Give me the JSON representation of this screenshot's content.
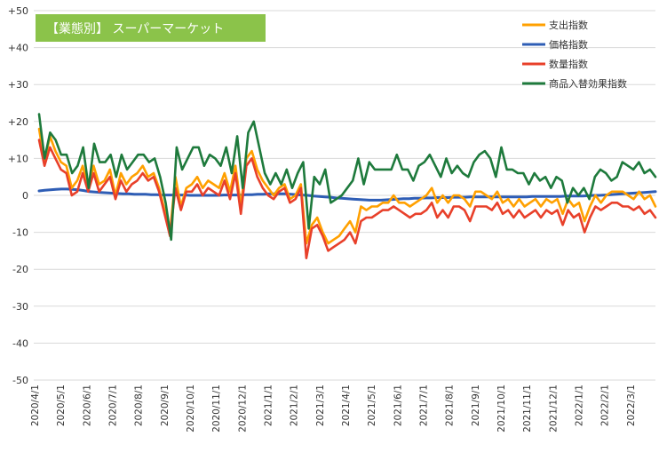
{
  "chart_data": {
    "type": "line",
    "title": "【業態別】 スーパーマーケット",
    "ylim": [
      -50,
      50
    ],
    "yticks": [
      {
        "value": 50,
        "label": "+50"
      },
      {
        "value": 40,
        "label": "+40"
      },
      {
        "value": 30,
        "label": "+30"
      },
      {
        "value": 20,
        "label": "+20"
      },
      {
        "value": 10,
        "label": "+10"
      },
      {
        "value": 0,
        "label": "0"
      },
      {
        "value": -10,
        "label": "-10"
      },
      {
        "value": -20,
        "label": "-20"
      },
      {
        "value": -30,
        "label": "-30"
      },
      {
        "value": -40,
        "label": "-40"
      },
      {
        "value": -50,
        "label": "-50"
      }
    ],
    "x_ticks": [
      "2020/4/1",
      "2020/5/1",
      "2020/6/1",
      "2020/7/1",
      "2020/8/1",
      "2020/9/1",
      "2020/10/1",
      "2020/11/1",
      "2020/12/1",
      "2021/1/1",
      "2021/2/1",
      "2021/3/1",
      "2021/4/1",
      "2021/5/1",
      "2021/6/1",
      "2021/7/1",
      "2021/8/1",
      "2021/9/1",
      "2021/10/1",
      "2021/11/1",
      "2021/12/1",
      "2022/1/1",
      "2022/2/1",
      "2022/3/1"
    ],
    "grid": "horizontal",
    "legend_position": "top-right",
    "series": [
      {
        "name": "支出指数",
        "color": "#FFA000",
        "values": [
          18,
          9,
          16,
          12,
          9,
          8,
          2,
          4,
          8,
          2,
          8,
          3,
          4,
          7,
          0,
          6,
          3,
          5,
          6,
          8,
          5,
          6,
          2,
          -4,
          -10,
          5,
          -3,
          2,
          3,
          5,
          2,
          4,
          3,
          2,
          6,
          1,
          8,
          -3,
          10,
          12,
          7,
          4,
          2,
          0,
          2,
          3,
          -1,
          0,
          3,
          -13,
          -8,
          -6,
          -10,
          -13,
          -12,
          -11,
          -9,
          -7,
          -10,
          -3,
          -4,
          -3,
          -3,
          -2,
          -2,
          0,
          -2,
          -2,
          -3,
          -2,
          -1,
          0,
          2,
          -2,
          0,
          -2,
          0,
          0,
          -1,
          -3,
          1,
          1,
          0,
          -1,
          1,
          -2,
          -1,
          -3,
          -1,
          -3,
          -2,
          -1,
          -3,
          -1,
          -2,
          -1,
          -5,
          -1,
          -3,
          -2,
          -7,
          -3,
          0,
          -2,
          0,
          1,
          1,
          1,
          0,
          -1,
          1,
          -1,
          0,
          -3
        ]
      },
      {
        "name": "価格指数",
        "color": "#2E5DB5",
        "values": [
          1.2,
          1.4,
          1.5,
          1.6,
          1.7,
          1.7,
          1.6,
          1.5,
          1.3,
          1.0,
          0.9,
          0.8,
          0.7,
          0.6,
          0.5,
          0.4,
          0.4,
          0.3,
          0.3,
          0.3,
          0.2,
          0.2,
          0.1,
          0.1,
          0.1,
          0.1,
          0.1,
          0.0,
          0.0,
          0.0,
          0.0,
          0.0,
          0.0,
          0.1,
          0.1,
          0.1,
          0.1,
          0.2,
          0.2,
          0.3,
          0.3,
          0.4,
          0.4,
          0.4,
          0.4,
          0.3,
          0.2,
          0.1,
          0.0,
          -0.2,
          -0.3,
          -0.4,
          -0.5,
          -0.7,
          -0.8,
          -0.9,
          -1.0,
          -1.1,
          -1.2,
          -1.3,
          -1.3,
          -1.3,
          -1.2,
          -1.1,
          -1.0,
          -0.9,
          -0.9,
          -0.8,
          -0.8,
          -0.7,
          -0.7,
          -0.6,
          -0.6,
          -0.6,
          -0.5,
          -0.5,
          -0.5,
          -0.4,
          -0.4,
          -0.4,
          -0.4,
          -0.4,
          -0.4,
          -0.4,
          -0.4,
          -0.4,
          -0.4,
          -0.4,
          -0.3,
          -0.3,
          -0.3,
          -0.3,
          -0.3,
          -0.3,
          -0.2,
          -0.2,
          -0.2,
          -0.2,
          -0.1,
          0.0,
          0.0,
          0.1,
          0.2,
          0.3,
          0.4,
          0.5,
          0.6,
          0.7,
          0.8,
          0.9,
          1.0
        ]
      },
      {
        "name": "数量指数",
        "color": "#E8402A",
        "values": [
          15,
          8,
          13,
          10,
          7,
          6,
          0,
          1,
          6,
          1,
          6,
          1,
          3,
          5,
          -1,
          4,
          1,
          3,
          4,
          6,
          4,
          5,
          1,
          -5,
          -11,
          2,
          -4,
          1,
          1,
          3,
          0,
          2,
          1,
          0,
          4,
          -1,
          6,
          -5,
          8,
          10,
          5,
          2,
          0,
          -1,
          1,
          2,
          -2,
          -1,
          2,
          -17,
          -9,
          -8,
          -11,
          -15,
          -14,
          -13,
          -12,
          -10,
          -13,
          -7,
          -6,
          -6,
          -5,
          -4,
          -4,
          -3,
          -4,
          -5,
          -6,
          -5,
          -5,
          -4,
          -2,
          -6,
          -4,
          -6,
          -3,
          -3,
          -4,
          -7,
          -3,
          -3,
          -3,
          -4,
          -2,
          -5,
          -4,
          -6,
          -4,
          -6,
          -5,
          -4,
          -6,
          -4,
          -5,
          -4,
          -8,
          -4,
          -6,
          -5,
          -10,
          -6,
          -3,
          -4,
          -3,
          -2,
          -2,
          -3,
          -3,
          -4,
          -3,
          -5,
          -4,
          -6
        ]
      },
      {
        "name": "商品入替効果指数",
        "color": "#1E7A3C",
        "values": [
          22,
          10,
          17,
          15,
          11,
          11,
          6,
          8,
          13,
          2,
          14,
          9,
          9,
          11,
          5,
          11,
          7,
          9,
          11,
          11,
          9,
          10,
          5,
          -2,
          -12,
          13,
          7,
          10,
          13,
          13,
          8,
          11,
          10,
          8,
          13,
          6,
          16,
          2,
          17,
          20,
          13,
          6,
          3,
          6,
          3,
          7,
          2,
          6,
          9,
          -9,
          5,
          3,
          7,
          -2,
          -1,
          0,
          2,
          4,
          10,
          3,
          9,
          7,
          7,
          7,
          7,
          11,
          7,
          7,
          4,
          8,
          9,
          11,
          8,
          5,
          10,
          6,
          8,
          6,
          5,
          9,
          11,
          12,
          10,
          5,
          13,
          7,
          7,
          6,
          6,
          3,
          6,
          4,
          5,
          2,
          5,
          4,
          -2,
          2,
          0,
          2,
          -1,
          5,
          7,
          6,
          4,
          5,
          9,
          8,
          7,
          9,
          6,
          7,
          5
        ]
      }
    ]
  }
}
